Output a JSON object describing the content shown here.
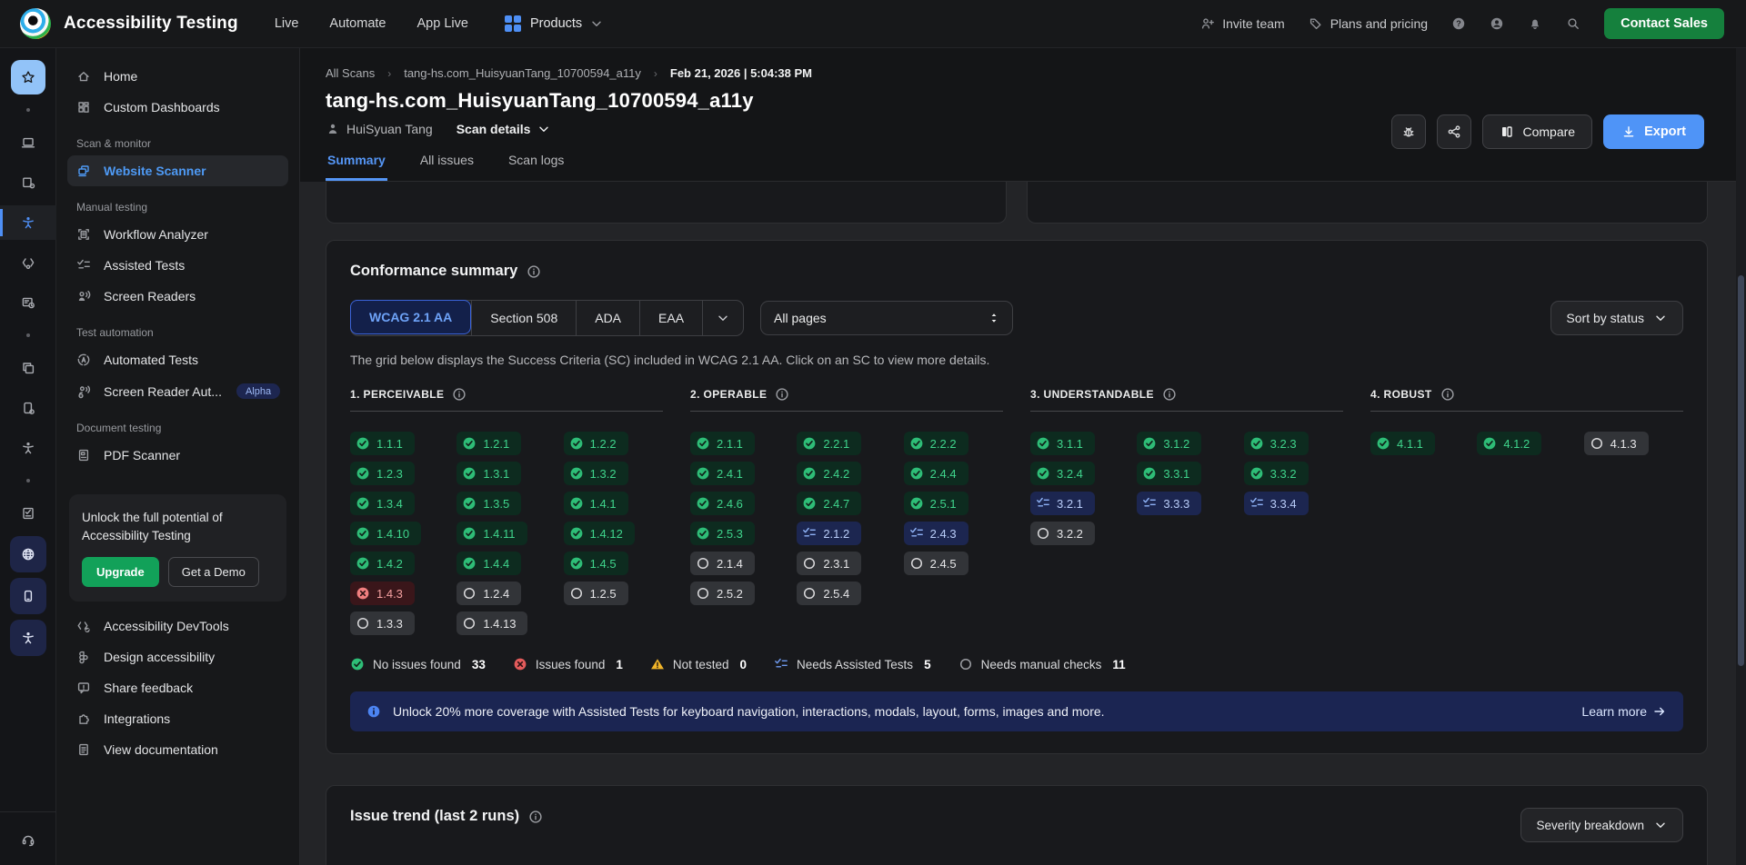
{
  "colors": {
    "accent_blue": "#4f94f7",
    "brand_green": "#15803d",
    "upgrade_green": "#12a159",
    "pass_green": "#3fd58c",
    "fail_red": "#f4a0a0",
    "warning_amber": "#f0b429",
    "assisted_blue": "#8fb3f7",
    "banner_navy": "#1b2552"
  },
  "topnav": {
    "product_title": "Accessibility Testing",
    "links": [
      "Live",
      "Automate",
      "App Live"
    ],
    "products_label": "Products",
    "invite_label": "Invite team",
    "plans_label": "Plans and pricing",
    "contact_sales_label": "Contact Sales"
  },
  "rail": {
    "items": [
      {
        "name": "favorites-icon",
        "icon": "star",
        "style": "hl"
      },
      {
        "name": "separator",
        "icon": "dot",
        "style": "dot"
      },
      {
        "name": "desktop-icon",
        "icon": "laptop",
        "style": "plain"
      },
      {
        "name": "device-settings-icon",
        "icon": "device-gear",
        "style": "plain"
      },
      {
        "name": "accessibility-icon",
        "icon": "a11y",
        "style": "active"
      },
      {
        "name": "devtools-code-icon",
        "icon": "code-gear",
        "style": "plain"
      },
      {
        "name": "test-management-icon",
        "icon": "card-clock",
        "style": "plain"
      },
      {
        "name": "separator",
        "icon": "dot",
        "style": "dot"
      },
      {
        "name": "pages-copy-icon",
        "icon": "copy",
        "style": "plain"
      },
      {
        "name": "mobile-settings-icon",
        "icon": "mobile-gear",
        "style": "plain"
      },
      {
        "name": "accessibility-small-icon",
        "icon": "a11y",
        "style": "plain"
      },
      {
        "name": "separator",
        "icon": "dot",
        "style": "dot"
      },
      {
        "name": "checklist-doc-icon",
        "icon": "checklist-doc",
        "style": "plain"
      },
      {
        "name": "web-scanner-icon",
        "icon": "globe",
        "style": "navy"
      },
      {
        "name": "app-scanner-icon",
        "icon": "phone",
        "style": "navy"
      },
      {
        "name": "a11y-suite-icon",
        "icon": "a11y",
        "style": "navy"
      }
    ],
    "footer_icon": "headset"
  },
  "sidebar": {
    "top_items": [
      {
        "label": "Home",
        "icon": "home"
      },
      {
        "label": "Custom Dashboards",
        "icon": "grid-dash"
      }
    ],
    "sections": [
      {
        "label": "Scan & monitor",
        "items": [
          {
            "label": "Website Scanner",
            "icon": "scanner",
            "active": true
          }
        ]
      },
      {
        "label": "Manual testing",
        "items": [
          {
            "label": "Workflow Analyzer",
            "icon": "workflow"
          },
          {
            "label": "Assisted Tests",
            "icon": "assisted"
          },
          {
            "label": "Screen Readers",
            "icon": "reader"
          }
        ]
      },
      {
        "label": "Test automation",
        "items": [
          {
            "label": "Automated Tests",
            "icon": "a-circle"
          },
          {
            "label": "Screen Reader Aut...",
            "icon": "reader-gear",
            "badge": "Alpha"
          }
        ]
      },
      {
        "label": "Document testing",
        "items": [
          {
            "label": "PDF Scanner",
            "icon": "pdf"
          }
        ]
      }
    ],
    "upsell": {
      "text": "Unlock the full potential of Accessibility Testing",
      "upgrade_label": "Upgrade",
      "demo_label": "Get a Demo"
    },
    "footer_items": [
      {
        "label": "Accessibility DevTools",
        "icon": "code-check"
      },
      {
        "label": "Design accessibility",
        "icon": "design"
      },
      {
        "label": "Share feedback",
        "icon": "feedback"
      },
      {
        "label": "Integrations",
        "icon": "puzzle"
      },
      {
        "label": "View documentation",
        "icon": "doc"
      }
    ]
  },
  "header": {
    "breadcrumb": [
      "All Scans",
      "tang-hs.com_HuisyuanTang_10700594_a11y",
      "Feb 21, 2026 | 5:04:38 PM"
    ],
    "title": "tang-hs.com_HuisyuanTang_10700594_a11y",
    "owner": "HuiSyuan Tang",
    "scan_details_label": "Scan details",
    "tabs": [
      {
        "label": "Summary",
        "active": true
      },
      {
        "label": "All issues",
        "active": false
      },
      {
        "label": "Scan logs",
        "active": false
      }
    ],
    "actions": {
      "compare_label": "Compare",
      "export_label": "Export"
    }
  },
  "conformance": {
    "title": "Conformance summary",
    "standards": [
      {
        "label": "WCAG 2.1 AA",
        "active": true
      },
      {
        "label": "Section 508",
        "active": false
      },
      {
        "label": "ADA",
        "active": false
      },
      {
        "label": "EAA",
        "active": false
      }
    ],
    "pages_filter_value": "All pages",
    "sort_label": "Sort by status",
    "description": "The grid below displays the Success Criteria (SC) included in WCAG 2.1 AA. Click on an SC to view more details.",
    "principles": [
      {
        "name": "1. PERCEIVABLE",
        "chips": [
          {
            "id": "1.1.1",
            "status": "pass"
          },
          {
            "id": "1.2.1",
            "status": "pass"
          },
          {
            "id": "1.2.2",
            "status": "pass"
          },
          {
            "id": "1.2.3",
            "status": "pass"
          },
          {
            "id": "1.3.1",
            "status": "pass"
          },
          {
            "id": "1.3.2",
            "status": "pass"
          },
          {
            "id": "1.3.4",
            "status": "pass"
          },
          {
            "id": "1.3.5",
            "status": "pass"
          },
          {
            "id": "1.4.1",
            "status": "pass"
          },
          {
            "id": "1.4.10",
            "status": "pass"
          },
          {
            "id": "1.4.11",
            "status": "pass"
          },
          {
            "id": "1.4.12",
            "status": "pass"
          },
          {
            "id": "1.4.2",
            "status": "pass"
          },
          {
            "id": "1.4.4",
            "status": "pass"
          },
          {
            "id": "1.4.5",
            "status": "pass"
          },
          {
            "id": "1.4.3",
            "status": "fail"
          },
          {
            "id": "1.2.4",
            "status": "manual"
          },
          {
            "id": "1.2.5",
            "status": "manual"
          },
          {
            "id": "1.3.3",
            "status": "manual"
          },
          {
            "id": "1.4.13",
            "status": "manual"
          }
        ]
      },
      {
        "name": "2. OPERABLE",
        "chips": [
          {
            "id": "2.1.1",
            "status": "pass"
          },
          {
            "id": "2.2.1",
            "status": "pass"
          },
          {
            "id": "2.2.2",
            "status": "pass"
          },
          {
            "id": "2.4.1",
            "status": "pass"
          },
          {
            "id": "2.4.2",
            "status": "pass"
          },
          {
            "id": "2.4.4",
            "status": "pass"
          },
          {
            "id": "2.4.6",
            "status": "pass"
          },
          {
            "id": "2.4.7",
            "status": "pass"
          },
          {
            "id": "2.5.1",
            "status": "pass"
          },
          {
            "id": "2.5.3",
            "status": "pass"
          },
          {
            "id": "2.1.2",
            "status": "assisted"
          },
          {
            "id": "2.4.3",
            "status": "assisted"
          },
          {
            "id": "2.1.4",
            "status": "manual"
          },
          {
            "id": "2.3.1",
            "status": "manual"
          },
          {
            "id": "2.4.5",
            "status": "manual"
          },
          {
            "id": "2.5.2",
            "status": "manual"
          },
          {
            "id": "2.5.4",
            "status": "manual"
          }
        ]
      },
      {
        "name": "3. UNDERSTANDABLE",
        "chips": [
          {
            "id": "3.1.1",
            "status": "pass"
          },
          {
            "id": "3.1.2",
            "status": "pass"
          },
          {
            "id": "3.2.3",
            "status": "pass"
          },
          {
            "id": "3.2.4",
            "status": "pass"
          },
          {
            "id": "3.3.1",
            "status": "pass"
          },
          {
            "id": "3.3.2",
            "status": "pass"
          },
          {
            "id": "3.2.1",
            "status": "assisted"
          },
          {
            "id": "3.3.3",
            "status": "assisted"
          },
          {
            "id": "3.3.4",
            "status": "assisted"
          },
          {
            "id": "3.2.2",
            "status": "manual"
          }
        ]
      },
      {
        "name": "4. ROBUST",
        "chips": [
          {
            "id": "4.1.1",
            "status": "pass"
          },
          {
            "id": "4.1.2",
            "status": "pass"
          },
          {
            "id": "4.1.3",
            "status": "manual"
          }
        ]
      }
    ],
    "legend": [
      {
        "icon": "check-circle",
        "label": "No issues found",
        "count": "33"
      },
      {
        "icon": "x-circle",
        "label": "Issues found",
        "count": "1"
      },
      {
        "icon": "warn-triangle",
        "label": "Not tested",
        "count": "0"
      },
      {
        "icon": "assisted-check",
        "label": "Needs Assisted Tests",
        "count": "5"
      },
      {
        "icon": "circle-outline",
        "label": "Needs manual checks",
        "count": "11"
      }
    ],
    "banner": {
      "text": "Unlock 20% more coverage with Assisted Tests for keyboard navigation, interactions, modals, layout, forms, images and more.",
      "link_label": "Learn more"
    }
  },
  "issue_trend": {
    "title": "Issue trend (last 2 runs)",
    "dropdown_label": "Severity breakdown"
  }
}
